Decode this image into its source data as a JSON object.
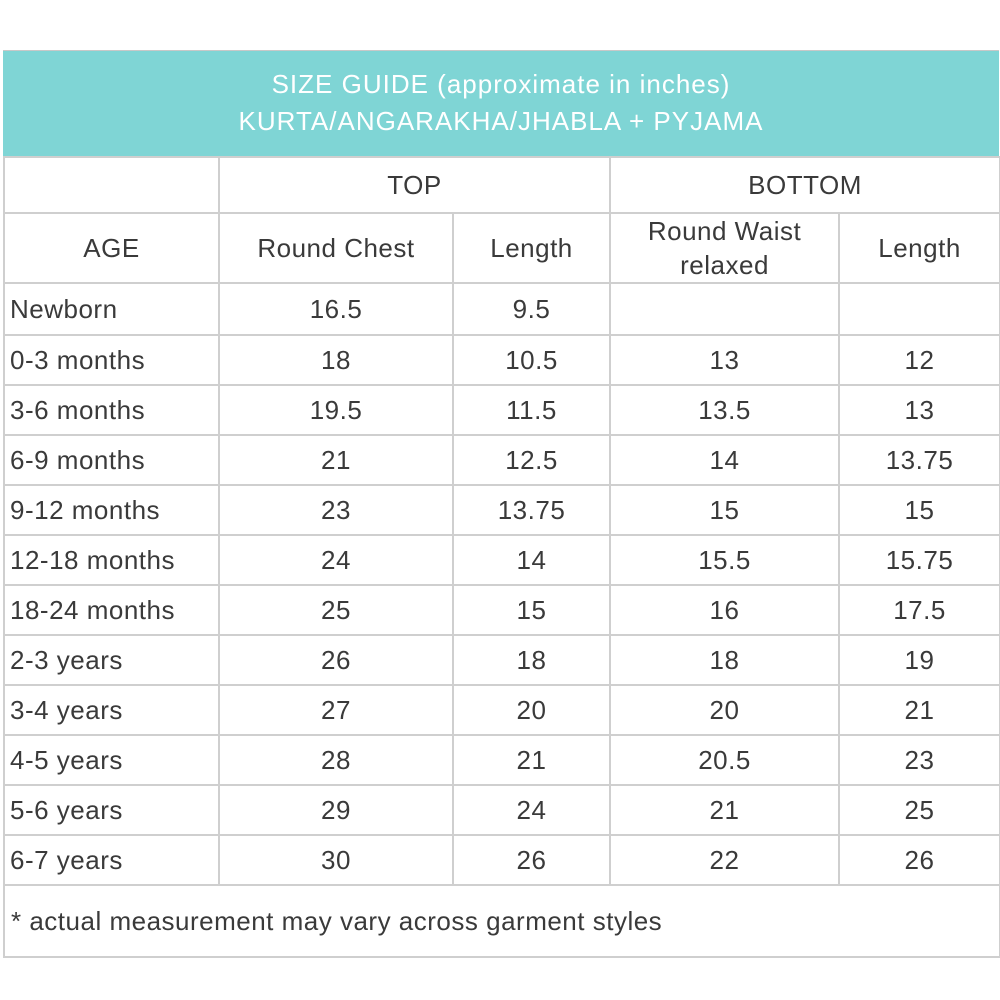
{
  "title": {
    "line1": "SIZE GUIDE (approximate in inches)",
    "line2": "KURTA/ANGARAKHA/JHABLA + PYJAMA"
  },
  "colors": {
    "header_band": "#7fd5d5",
    "header_text": "#ffffff",
    "grid": "#cfcfcf",
    "text": "#3a3a3a"
  },
  "groups": {
    "top": "TOP",
    "bottom": "BOTTOM"
  },
  "columns": {
    "age": "AGE",
    "round_chest": "Round Chest",
    "top_length": "Length",
    "round_waist": "Round Waist relaxed",
    "bottom_length": "Length"
  },
  "rows": [
    {
      "age": "Newborn",
      "chest": "16.5",
      "top_length": "9.5",
      "waist": "",
      "bottom_length": ""
    },
    {
      "age": "0-3 months",
      "chest": "18",
      "top_length": "10.5",
      "waist": "13",
      "bottom_length": "12"
    },
    {
      "age": "3-6 months",
      "chest": "19.5",
      "top_length": "11.5",
      "waist": "13.5",
      "bottom_length": "13"
    },
    {
      "age": "6-9 months",
      "chest": "21",
      "top_length": "12.5",
      "waist": "14",
      "bottom_length": "13.75"
    },
    {
      "age": "9-12 months",
      "chest": "23",
      "top_length": "13.75",
      "waist": "15",
      "bottom_length": "15"
    },
    {
      "age": "12-18 months",
      "chest": "24",
      "top_length": "14",
      "waist": "15.5",
      "bottom_length": "15.75"
    },
    {
      "age": "18-24 months",
      "chest": "25",
      "top_length": "15",
      "waist": "16",
      "bottom_length": "17.5"
    },
    {
      "age": "2-3 years",
      "chest": "26",
      "top_length": "18",
      "waist": "18",
      "bottom_length": "19"
    },
    {
      "age": "3-4 years",
      "chest": "27",
      "top_length": "20",
      "waist": "20",
      "bottom_length": "21"
    },
    {
      "age": "4-5 years",
      "chest": "28",
      "top_length": "21",
      "waist": "20.5",
      "bottom_length": "23"
    },
    {
      "age": "5-6 years",
      "chest": "29",
      "top_length": "24",
      "waist": "21",
      "bottom_length": "25"
    },
    {
      "age": "6-7 years",
      "chest": "30",
      "top_length": "26",
      "waist": "22",
      "bottom_length": "26"
    }
  ],
  "footnote": "* actual measurement may vary across garment styles"
}
